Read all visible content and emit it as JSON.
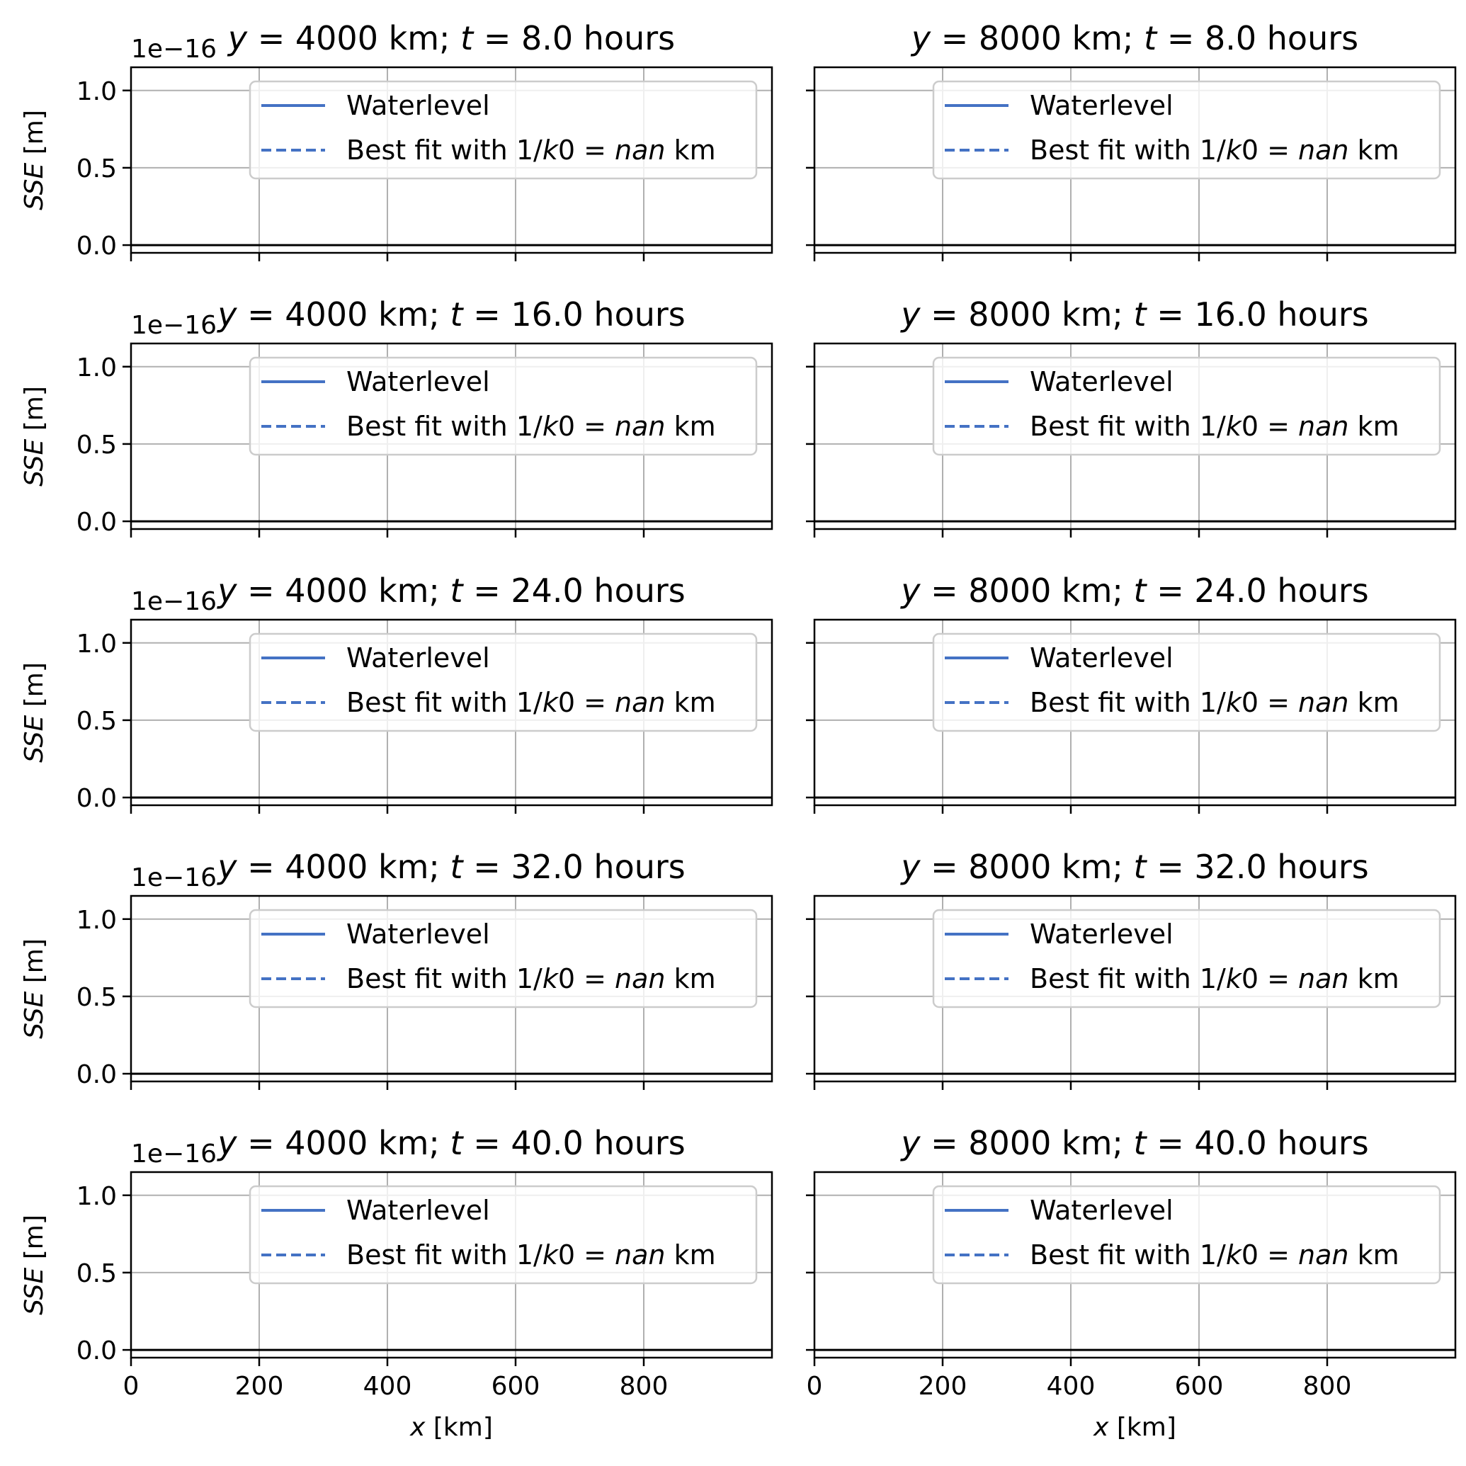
{
  "figure": {
    "offset_label": "1e−16",
    "ylabel_var": "SSE",
    "ylabel_unit": " [m]",
    "xlabel_var": "x",
    "xlabel_unit": " [km]"
  },
  "colors": {
    "series": "#4472c4",
    "grid": "#b0b0b0",
    "axes": "#000000",
    "zero_line": "#000000"
  },
  "legend": {
    "solid_label": "Waterlevel",
    "dashed_label_pre": "Best fit with 1/",
    "dashed_label_k": "k",
    "dashed_label_mid": "0 = ",
    "dashed_label_val": "nan",
    "dashed_label_post": " km"
  },
  "chart_data": [
    {
      "type": "line",
      "title_y": "4000",
      "title_t": "8.0",
      "col": 0,
      "row": 0,
      "xlim": [
        0,
        1000
      ],
      "ylim": [
        -0.05,
        1.15
      ],
      "xticks": [
        0,
        200,
        400,
        600,
        800
      ],
      "yticks": [
        "0.0",
        "0.5",
        "1.0"
      ],
      "grid": true,
      "legend_loc": "upper right",
      "series": [
        {
          "name": "Waterlevel",
          "x": [
            0,
            1000
          ],
          "y": [
            0,
            0
          ]
        },
        {
          "name": "Best fit with 1/k0 = nan km",
          "x": [],
          "y": []
        }
      ]
    },
    {
      "type": "line",
      "title_y": "8000",
      "title_t": "8.0",
      "col": 1,
      "row": 0,
      "xlim": [
        0,
        1000
      ],
      "ylim": [
        -0.05,
        1.15
      ],
      "xticks": [
        0,
        200,
        400,
        600,
        800
      ],
      "yticks": [
        "0.0",
        "0.5",
        "1.0"
      ],
      "grid": true,
      "legend_loc": "upper right",
      "series": [
        {
          "name": "Waterlevel",
          "x": [
            0,
            1000
          ],
          "y": [
            0,
            0
          ]
        },
        {
          "name": "Best fit with 1/k0 = nan km",
          "x": [],
          "y": []
        }
      ]
    },
    {
      "type": "line",
      "title_y": "4000",
      "title_t": "16.0",
      "col": 0,
      "row": 1,
      "xlim": [
        0,
        1000
      ],
      "ylim": [
        -0.05,
        1.15
      ],
      "xticks": [
        0,
        200,
        400,
        600,
        800
      ],
      "yticks": [
        "0.0",
        "0.5",
        "1.0"
      ],
      "grid": true,
      "legend_loc": "upper right",
      "series": [
        {
          "name": "Waterlevel",
          "x": [
            0,
            1000
          ],
          "y": [
            0,
            0
          ]
        },
        {
          "name": "Best fit with 1/k0 = nan km",
          "x": [],
          "y": []
        }
      ]
    },
    {
      "type": "line",
      "title_y": "8000",
      "title_t": "16.0",
      "col": 1,
      "row": 1,
      "xlim": [
        0,
        1000
      ],
      "ylim": [
        -0.05,
        1.15
      ],
      "xticks": [
        0,
        200,
        400,
        600,
        800
      ],
      "yticks": [
        "0.0",
        "0.5",
        "1.0"
      ],
      "grid": true,
      "legend_loc": "upper right",
      "series": [
        {
          "name": "Waterlevel",
          "x": [
            0,
            1000
          ],
          "y": [
            0,
            0
          ]
        },
        {
          "name": "Best fit with 1/k0 = nan km",
          "x": [],
          "y": []
        }
      ]
    },
    {
      "type": "line",
      "title_y": "4000",
      "title_t": "24.0",
      "col": 0,
      "row": 2,
      "xlim": [
        0,
        1000
      ],
      "ylim": [
        -0.05,
        1.15
      ],
      "xticks": [
        0,
        200,
        400,
        600,
        800
      ],
      "yticks": [
        "0.0",
        "0.5",
        "1.0"
      ],
      "grid": true,
      "legend_loc": "upper right",
      "series": [
        {
          "name": "Waterlevel",
          "x": [
            0,
            1000
          ],
          "y": [
            0,
            0
          ]
        },
        {
          "name": "Best fit with 1/k0 = nan km",
          "x": [],
          "y": []
        }
      ]
    },
    {
      "type": "line",
      "title_y": "8000",
      "title_t": "24.0",
      "col": 1,
      "row": 2,
      "xlim": [
        0,
        1000
      ],
      "ylim": [
        -0.05,
        1.15
      ],
      "xticks": [
        0,
        200,
        400,
        600,
        800
      ],
      "yticks": [
        "0.0",
        "0.5",
        "1.0"
      ],
      "grid": true,
      "legend_loc": "upper right",
      "series": [
        {
          "name": "Waterlevel",
          "x": [
            0,
            1000
          ],
          "y": [
            0,
            0
          ]
        },
        {
          "name": "Best fit with 1/k0 = nan km",
          "x": [],
          "y": []
        }
      ]
    },
    {
      "type": "line",
      "title_y": "4000",
      "title_t": "32.0",
      "col": 0,
      "row": 3,
      "xlim": [
        0,
        1000
      ],
      "ylim": [
        -0.05,
        1.15
      ],
      "xticks": [
        0,
        200,
        400,
        600,
        800
      ],
      "yticks": [
        "0.0",
        "0.5",
        "1.0"
      ],
      "grid": true,
      "legend_loc": "upper right",
      "series": [
        {
          "name": "Waterlevel",
          "x": [
            0,
            1000
          ],
          "y": [
            0,
            0
          ]
        },
        {
          "name": "Best fit with 1/k0 = nan km",
          "x": [],
          "y": []
        }
      ]
    },
    {
      "type": "line",
      "title_y": "8000",
      "title_t": "32.0",
      "col": 1,
      "row": 3,
      "xlim": [
        0,
        1000
      ],
      "ylim": [
        -0.05,
        1.15
      ],
      "xticks": [
        0,
        200,
        400,
        600,
        800
      ],
      "yticks": [
        "0.0",
        "0.5",
        "1.0"
      ],
      "grid": true,
      "legend_loc": "upper right",
      "series": [
        {
          "name": "Waterlevel",
          "x": [
            0,
            1000
          ],
          "y": [
            0,
            0
          ]
        },
        {
          "name": "Best fit with 1/k0 = nan km",
          "x": [],
          "y": []
        }
      ]
    },
    {
      "type": "line",
      "title_y": "4000",
      "title_t": "40.0",
      "col": 0,
      "row": 4,
      "xlim": [
        0,
        1000
      ],
      "ylim": [
        -0.05,
        1.15
      ],
      "xticks": [
        0,
        200,
        400,
        600,
        800
      ],
      "yticks": [
        "0.0",
        "0.5",
        "1.0"
      ],
      "grid": true,
      "legend_loc": "upper right",
      "series": [
        {
          "name": "Waterlevel",
          "x": [
            0,
            1000
          ],
          "y": [
            0,
            0
          ]
        },
        {
          "name": "Best fit with 1/k0 = nan km",
          "x": [],
          "y": []
        }
      ]
    },
    {
      "type": "line",
      "title_y": "8000",
      "title_t": "40.0",
      "col": 1,
      "row": 4,
      "xlim": [
        0,
        1000
      ],
      "ylim": [
        -0.05,
        1.15
      ],
      "xticks": [
        0,
        200,
        400,
        600,
        800
      ],
      "yticks": [
        "0.0",
        "0.5",
        "1.0"
      ],
      "grid": true,
      "legend_loc": "upper right",
      "series": [
        {
          "name": "Waterlevel",
          "x": [
            0,
            1000
          ],
          "y": [
            0,
            0
          ]
        },
        {
          "name": "Best fit with 1/k0 = nan km",
          "x": [],
          "y": []
        }
      ]
    }
  ]
}
